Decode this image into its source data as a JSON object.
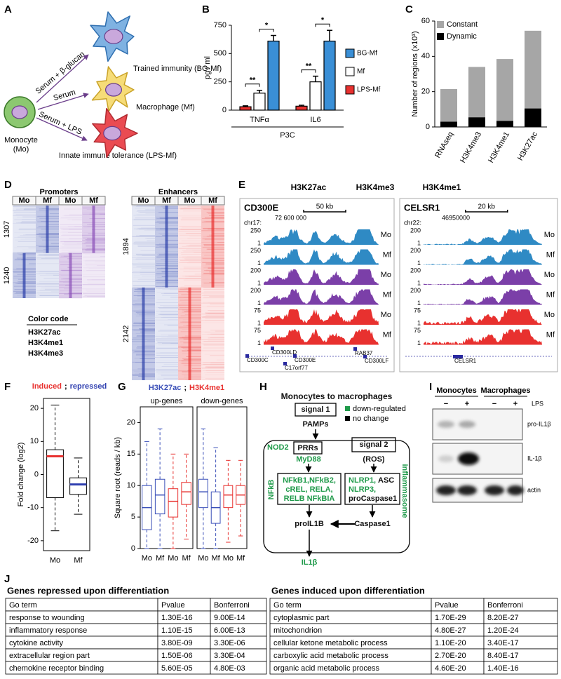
{
  "panel_labels": [
    "A",
    "B",
    "C",
    "D",
    "E",
    "F",
    "G",
    "H",
    "I",
    "J"
  ],
  "panel_a": {
    "source": [
      "Monocyte",
      "(Mo)"
    ],
    "treatments": [
      "Serum + β-glucan",
      "Serum",
      "Serum + LPS"
    ],
    "outcomes": [
      "Trained immunity (BG-Mf)",
      "Macrophage (Mf)",
      "Innate immune tolerance (LPS-Mf)"
    ]
  },
  "chart_data": [
    {
      "type": "bar",
      "ylabel": "pg / ml",
      "xlabel": "P3C",
      "categories": [
        "TNFα",
        "IL6"
      ],
      "series": [
        {
          "name": "LPS-Mf",
          "color": "#e8312f",
          "values": [
            30,
            35
          ],
          "errors": [
            8,
            8
          ]
        },
        {
          "name": "Mf",
          "color": "#ffffff",
          "values": [
            150,
            250
          ],
          "errors": [
            25,
            50
          ]
        },
        {
          "name": "BG-Mf",
          "color": "#3a8fd6",
          "values": [
            610,
            610
          ],
          "errors": [
            50,
            95
          ]
        }
      ],
      "significance": [
        "**",
        "*",
        "**",
        "*"
      ],
      "ylim": [
        0,
        750
      ],
      "yticks": [
        0,
        250,
        500,
        750
      ]
    },
    {
      "type": "stacked_bar",
      "ylabel": "Number of regions (x10³)",
      "categories": [
        "RNAseq",
        "H3K4me3",
        "H3K4me1",
        "H3K27ac"
      ],
      "series": [
        {
          "name": "Dynamic",
          "color": "#000000",
          "values": [
            3,
            5.5,
            3.5,
            10.5
          ]
        },
        {
          "name": "Constant",
          "color": "#a6a6a6",
          "values": [
            18.5,
            28.5,
            35,
            44
          ]
        }
      ],
      "ylim": [
        0,
        60
      ],
      "yticks": [
        0,
        20,
        40,
        60
      ]
    },
    {
      "type": "box",
      "title_parts": [
        "Induced",
        ";",
        "repressed"
      ],
      "title_colors": [
        "#e8312f",
        "#000000",
        "#3040b0"
      ],
      "ylabel": "Fold change (log2)",
      "categories": [
        "Mo",
        "Mf"
      ],
      "median_colors": [
        "#e8312f",
        "#3040b0"
      ],
      "stats": [
        [
          -17,
          -7,
          5.5,
          7.5,
          21
        ],
        [
          -12,
          -6,
          -3,
          -1,
          5
        ]
      ],
      "ylim": [
        -23,
        23
      ],
      "yticks": [
        -20,
        -10,
        0,
        10,
        20
      ]
    },
    {
      "type": "box",
      "subtitle": "up-genes",
      "ylabel": "Square root (reads / kb)",
      "categories": [
        "Mo",
        "Mf",
        "Mo",
        "Mf"
      ],
      "colors": [
        "#3a4fb8",
        "#3a4fb8",
        "#e8312f",
        "#e8312f"
      ],
      "stats": [
        [
          0,
          3,
          6.5,
          10,
          17
        ],
        [
          0,
          5.5,
          8.5,
          11,
          19
        ],
        [
          0,
          5,
          7.5,
          9.5,
          15
        ],
        [
          1.5,
          7,
          9,
          10.5,
          15
        ]
      ],
      "ylim": [
        0,
        22.5
      ],
      "yticks": [
        0,
        5,
        10,
        15,
        20
      ]
    },
    {
      "type": "box",
      "subtitle": "down-genes",
      "categories": [
        "Mo",
        "Mf",
        "Mo",
        "Mf"
      ],
      "colors": [
        "#3a4fb8",
        "#3a4fb8",
        "#e8312f",
        "#e8312f"
      ],
      "stats": [
        [
          0,
          6.5,
          9,
          11,
          19
        ],
        [
          0,
          4,
          6.5,
          9,
          16
        ],
        [
          1,
          6.5,
          8.5,
          10,
          14
        ],
        [
          2,
          7,
          8.5,
          10,
          14
        ]
      ],
      "ylim": [
        0,
        22.5
      ]
    }
  ],
  "panel_d": {
    "groups": [
      {
        "title": "Promoters",
        "columns": [
          "Mo",
          "Mf",
          "Mo",
          "Mf"
        ],
        "column_colors": [
          "#2b3fa8",
          "#2b3fa8",
          "#8a4fb8",
          "#8a4fb8"
        ],
        "clusters": [
          1307,
          1240
        ]
      },
      {
        "title": "Enhancers",
        "columns": [
          "Mo",
          "Mf",
          "Mo",
          "Mf"
        ],
        "column_colors": [
          "#2b3fa8",
          "#2b3fa8",
          "#e8312f",
          "#e8312f"
        ],
        "clusters": [
          1894,
          2142
        ]
      }
    ],
    "color_code": {
      "title": "Color code",
      "entries": [
        "H3K27ac",
        "H3K4me1",
        "H3K4me3"
      ],
      "colors": [
        "#2b3fa8",
        "#e8312f",
        "#8a4fb8"
      ]
    }
  },
  "panel_e": {
    "marks": [
      "H3K27ac",
      "H3K4me3",
      "H3K4me1"
    ],
    "colors": [
      "#2f8ac4",
      "#7b3fa8",
      "#e8312f"
    ],
    "loci": [
      {
        "gene": "CD300E",
        "scale": "50 kb",
        "chrom": "chr17:",
        "coordinate": "72 600 000",
        "tracks": [
          {
            "max": 250,
            "min": 1,
            "sample": "Mo"
          },
          {
            "max": 250,
            "min": 1,
            "sample": "Mf"
          },
          {
            "max": 200,
            "min": 1,
            "sample": "Mo"
          },
          {
            "max": 200,
            "min": 1,
            "sample": "Mf"
          },
          {
            "max": 75,
            "min": 1,
            "sample": "Mo"
          },
          {
            "max": 75,
            "min": 1,
            "sample": "Mf"
          }
        ],
        "genes": [
          "CD300LD",
          "CD300C",
          "CD300E",
          "C17orf77",
          "RAB37",
          "CD300LF"
        ]
      },
      {
        "gene": "CELSR1",
        "scale": "20 kb",
        "chrom": "chr22:",
        "coordinate": "46950000",
        "tracks": [
          {
            "max": 200,
            "min": 1,
            "sample": "Mo"
          },
          {
            "max": 200,
            "min": 1,
            "sample": "Mf"
          },
          {
            "max": 200,
            "min": 1,
            "sample": "Mo"
          },
          {
            "max": 200,
            "min": 1,
            "sample": "Mf"
          },
          {
            "max": 75,
            "min": 1,
            "sample": "Mo"
          },
          {
            "max": 75,
            "min": 1,
            "sample": "Mf"
          }
        ],
        "genes": [
          "CELSR1"
        ]
      }
    ]
  },
  "panel_g": {
    "title_parts": [
      "H3K27ac",
      ";",
      "H3K4me1"
    ],
    "title_colors": [
      "#3a4fb8",
      "#000000",
      "#e8312f"
    ]
  },
  "panel_h": {
    "title": "Monocytes to macrophages",
    "signal1": "signal 1",
    "pamps": "PAMPs",
    "legend": [
      "down-regulated",
      "no change"
    ],
    "nod2": "NOD2",
    "prrs": "PRRs",
    "myd88": "MyD88",
    "signal2": "signal 2",
    "ros": "(ROS)",
    "nfkb": "NFkB",
    "nfkb_genes": [
      "NFkB1,NFkB2,",
      "cREL, RELA,",
      "RELB NFkBIA"
    ],
    "inflammasome_genes": [
      [
        "NLRP1,",
        "ASC"
      ],
      [
        "NLRP3,"
      ],
      [
        "proCaspase1"
      ]
    ],
    "inflammasome": "inflammasome",
    "proil1b": "proIL1B",
    "caspase1": "Caspase1",
    "il1b": "IL1β"
  },
  "panel_i": {
    "groups": [
      "Monocytes",
      "Macrophages"
    ],
    "treatment_signs": [
      "−",
      "+",
      "−",
      "+"
    ],
    "treatment": "LPS",
    "rows": [
      "pro-IL1β",
      "IL-1β",
      "actin"
    ]
  },
  "panel_j": {
    "tables": [
      {
        "title": "Genes repressed upon differentiation",
        "header": [
          "Go term",
          "Pvalue",
          "Bonferroni"
        ],
        "rows": [
          [
            "response to wounding",
            "1.30E-16",
            "9.00E-14"
          ],
          [
            "inflammatory response",
            "1.10E-15",
            "6.00E-13"
          ],
          [
            "cytokine activity",
            "3.80E-09",
            "3.30E-06"
          ],
          [
            "extracellular region part",
            "1.50E-06",
            "3.30E-04"
          ],
          [
            "chemokine receptor binding",
            "5.60E-05",
            "4.80E-03"
          ]
        ]
      },
      {
        "title": "Genes induced upon differentiation",
        "header": [
          "Go term",
          "Pvalue",
          "Bonferroni"
        ],
        "rows": [
          [
            "cytoplasmic part",
            "1.70E-29",
            "8.20E-27"
          ],
          [
            "mitochondrion",
            "4.80E-27",
            "1.20E-24"
          ],
          [
            "cellular ketone metabolic process",
            "1.10E-20",
            "3.40E-17"
          ],
          [
            "carboxylic acid metabolic process",
            "2.70E-20",
            "8.40E-17"
          ],
          [
            "organic acid metabolic process",
            "4.60E-20",
            "1.40E-16"
          ]
        ]
      }
    ]
  }
}
